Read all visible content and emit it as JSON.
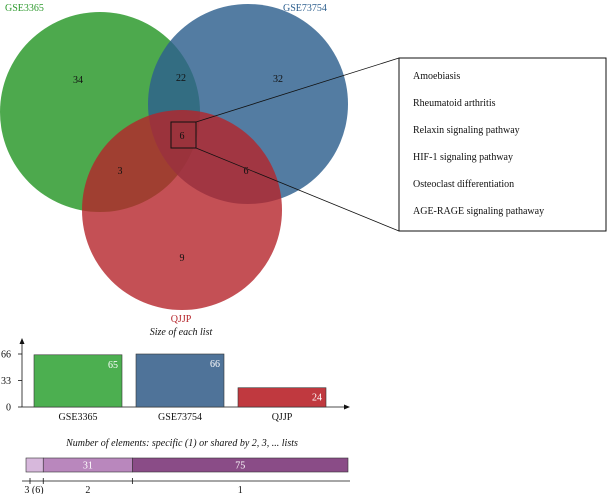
{
  "venn": {
    "sets": [
      {
        "name": "GSE3365",
        "color": "#2e9a2e"
      },
      {
        "name": "GSE73754",
        "color": "#2d5f8e"
      },
      {
        "name": "QJJP",
        "color": "#b5242a"
      }
    ],
    "regions": {
      "gse3365_only": "34",
      "gse3365_gse73754": "22",
      "gse73754_only": "32",
      "all_three": "6",
      "gse3365_qjjp": "3",
      "gse73754_qjjp": "6",
      "qjjp_only": "9"
    },
    "pathways": [
      "Amoebiasis",
      "Rheumatoid arthritis",
      "Relaxin signaling pathway",
      "HIF-1 signaling pathway",
      "Osteoclast differentiation",
      "AGE-RAGE signaling pathaway"
    ]
  },
  "chart_data": [
    {
      "type": "bar",
      "title": "Size of each list",
      "categories": [
        "GSE3365",
        "GSE73754",
        "QJJP"
      ],
      "values": [
        65,
        66,
        24
      ],
      "value_labels": [
        "65",
        "66",
        "24"
      ],
      "colors": [
        "#4caf50",
        "#4f7399",
        "#c0393f"
      ],
      "yticks": [
        "0",
        "33",
        "66"
      ],
      "ylim": [
        0,
        66
      ]
    },
    {
      "type": "bar",
      "orientation": "horizontal-stacked",
      "title": "Number of elements: specific (1) or shared by 2, 3, ... lists",
      "segments": [
        {
          "label": "3 (6)",
          "value": 6,
          "text": "",
          "color": "#d7b8dc"
        },
        {
          "label": "2",
          "value": 31,
          "text": "31",
          "color": "#b987bd"
        },
        {
          "label": "1",
          "value": 75,
          "text": "75",
          "color": "#8a4c87"
        }
      ]
    }
  ]
}
